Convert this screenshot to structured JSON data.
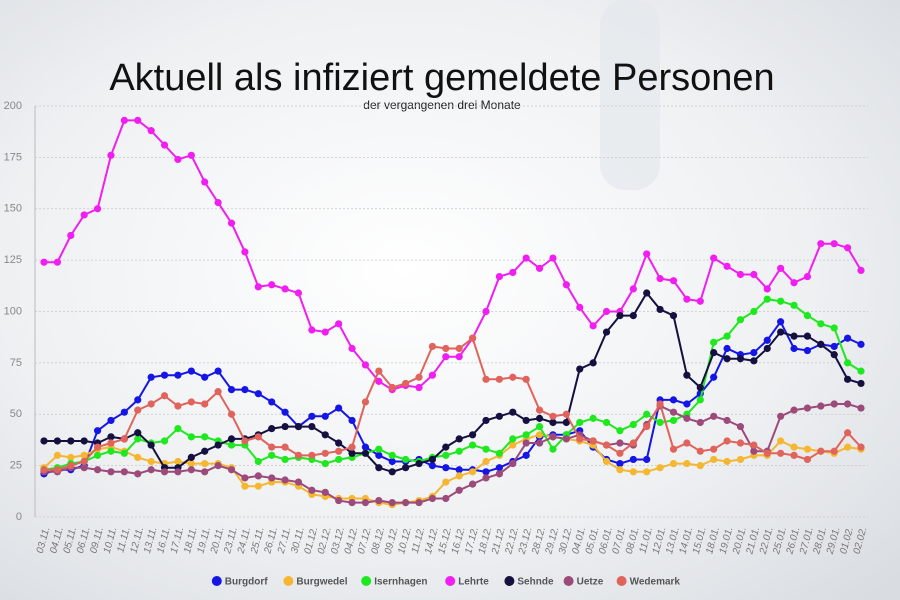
{
  "chart_data": {
    "type": "line",
    "title": "Aktuell als infiziert gemeldete Personen",
    "subtitle": "der vergangenen drei Monate",
    "categories": [
      "03.11.",
      "04.11.",
      "05.11.",
      "06.11.",
      "09.11.",
      "10.11.",
      "11.11.",
      "12.11.",
      "13.11.",
      "16.11.",
      "17.11.",
      "18.11.",
      "19.11.",
      "20.11.",
      "23.11.",
      "24.11.",
      "25.11.",
      "26.11.",
      "27.11.",
      "30.11.",
      "01.12.",
      "02.12.",
      "03.12.",
      "04.12.",
      "07.12.",
      "08.12.",
      "09.12.",
      "10.12.",
      "11.12.",
      "14.12.",
      "15.12.",
      "16.12.",
      "17.12.",
      "18.12.",
      "21.12.",
      "22.12.",
      "23.12.",
      "28.12.",
      "29.12.",
      "30.12.",
      "04.01.",
      "05.01.",
      "06.01.",
      "07.01.",
      "08.01.",
      "11.01.",
      "12.01.",
      "13.01.",
      "14.01.",
      "15.01.",
      "18.01.",
      "19.01.",
      "20.01.",
      "21.01.",
      "22.01.",
      "25.01.",
      "26.01.",
      "27.01.",
      "28.01.",
      "29.01.",
      "01.02.",
      "02.02."
    ],
    "series": [
      {
        "name": "Burgdorf",
        "color": "#1515e6",
        "values": [
          21,
          23,
          23,
          25,
          42,
          47,
          51,
          57,
          68,
          69,
          69,
          71,
          68,
          71,
          62,
          62,
          60,
          56,
          51,
          44,
          49,
          49,
          53,
          47,
          34,
          30,
          27,
          27,
          28,
          25,
          24,
          23,
          23,
          22,
          24,
          27,
          30,
          39,
          40,
          40,
          42,
          34,
          28,
          26,
          28,
          28,
          57,
          57,
          55,
          60,
          68,
          82,
          79,
          80,
          86,
          95,
          82,
          81,
          84,
          83,
          87,
          84
        ]
      },
      {
        "name": "Burgwedel",
        "color": "#f5b731",
        "values": [
          24,
          30,
          29,
          30,
          33,
          34,
          32,
          29,
          27,
          26,
          27,
          26,
          26,
          26,
          24,
          15,
          15,
          17,
          17,
          15,
          11,
          10,
          9,
          9,
          9,
          7,
          6,
          7,
          8,
          10,
          17,
          20,
          22,
          27,
          30,
          35,
          38,
          40,
          39,
          38,
          37,
          35,
          27,
          23,
          22,
          22,
          24,
          26,
          26,
          25,
          28,
          27,
          28,
          30,
          30,
          37,
          34,
          33,
          32,
          31,
          34,
          33
        ]
      },
      {
        "name": "Isernhagen",
        "color": "#1ee81e",
        "values": [
          23,
          24,
          26,
          27,
          30,
          32,
          31,
          38,
          36,
          37,
          43,
          39,
          39,
          37,
          35,
          35,
          27,
          30,
          28,
          29,
          28,
          26,
          28,
          29,
          31,
          33,
          30,
          28,
          27,
          29,
          30,
          32,
          35,
          33,
          31,
          38,
          40,
          44,
          33,
          40,
          46,
          48,
          46,
          42,
          45,
          50,
          46,
          47,
          50,
          57,
          85,
          88,
          96,
          100,
          106,
          105,
          103,
          98,
          94,
          92,
          75,
          71
        ]
      },
      {
        "name": "Lehrte",
        "color": "#f01ef0",
        "values": [
          124,
          124,
          137,
          147,
          150,
          176,
          193,
          193,
          188,
          181,
          174,
          176,
          163,
          153,
          143,
          129,
          112,
          113,
          111,
          109,
          91,
          90,
          94,
          82,
          74,
          66,
          62,
          64,
          63,
          69,
          78,
          78,
          87,
          100,
          117,
          119,
          126,
          121,
          126,
          113,
          102,
          93,
          100,
          100,
          111,
          128,
          116,
          115,
          106,
          105,
          126,
          122,
          118,
          118,
          111,
          121,
          114,
          117,
          133,
          133,
          131,
          120
        ]
      },
      {
        "name": "Sehnde",
        "color": "#141040",
        "values": [
          37,
          37,
          37,
          37,
          36,
          39,
          38,
          41,
          35,
          24,
          24,
          29,
          32,
          35,
          38,
          38,
          40,
          43,
          44,
          44,
          44,
          40,
          36,
          31,
          31,
          24,
          22,
          24,
          26,
          28,
          34,
          38,
          40,
          47,
          49,
          51,
          47,
          48,
          46,
          46,
          72,
          75,
          90,
          98,
          98,
          109,
          101,
          98,
          69,
          63,
          80,
          77,
          77,
          76,
          82,
          90,
          88,
          88,
          84,
          79,
          67,
          65
        ]
      },
      {
        "name": "Uetze",
        "color": "#9b4a7a",
        "values": [
          22,
          22,
          24,
          24,
          23,
          22,
          22,
          21,
          23,
          22,
          22,
          23,
          22,
          25,
          23,
          19,
          20,
          19,
          18,
          17,
          13,
          12,
          8,
          7,
          7,
          8,
          7,
          7,
          7,
          9,
          9,
          13,
          16,
          19,
          21,
          26,
          36,
          36,
          39,
          38,
          40,
          37,
          35,
          36,
          35,
          45,
          54,
          51,
          48,
          46,
          49,
          47,
          44,
          32,
          32,
          49,
          52,
          53,
          54,
          55,
          55,
          53
        ]
      },
      {
        "name": "Wedemark",
        "color": "#e0635c",
        "values": [
          23,
          23,
          25,
          27,
          34,
          36,
          38,
          52,
          55,
          59,
          54,
          56,
          55,
          61,
          50,
          37,
          39,
          34,
          34,
          30,
          30,
          31,
          32,
          34,
          56,
          71,
          63,
          65,
          68,
          83,
          82,
          82,
          87,
          67,
          67,
          68,
          67,
          52,
          49,
          50,
          38,
          37,
          35,
          31,
          36,
          44,
          55,
          33,
          36,
          32,
          33,
          37,
          36,
          35,
          31,
          31,
          30,
          28,
          32,
          32,
          41,
          34
        ]
      }
    ],
    "ylim": [
      0,
      200
    ],
    "yticks": [
      0,
      25,
      50,
      75,
      100,
      125,
      150,
      175,
      200
    ],
    "grid": true,
    "legend": "bottom"
  }
}
